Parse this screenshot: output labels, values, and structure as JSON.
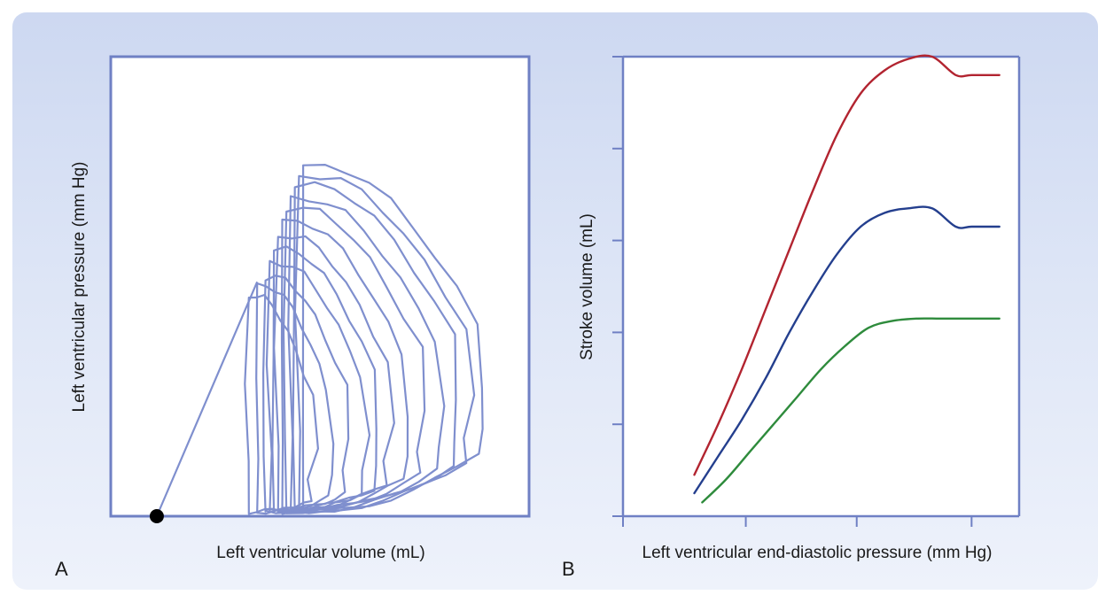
{
  "chart_data": [
    {
      "type": "line",
      "panel_label": "A",
      "xlabel": "Left ventricular volume (mL)",
      "ylabel": "Left ventricular pressure (mm Hg)",
      "x_range": [
        0,
        100
      ],
      "y_range": [
        0,
        100
      ],
      "grid": false,
      "series": [
        {
          "description": "pressure-volume loops during caval occlusion",
          "color": "#7f8fce",
          "loops": [
            {
              "esv": 46,
              "edv": 88,
              "ped": 14,
              "pes": 76
            },
            {
              "esv": 45,
              "edv": 85,
              "ped": 12,
              "pes": 74
            },
            {
              "esv": 44,
              "edv": 82,
              "ped": 11,
              "pes": 72
            },
            {
              "esv": 43,
              "edv": 78,
              "ped": 10,
              "pes": 69
            },
            {
              "esv": 42,
              "edv": 74,
              "ped": 9,
              "pes": 67
            },
            {
              "esv": 41,
              "edv": 70,
              "ped": 8,
              "pes": 64
            },
            {
              "esv": 40,
              "edv": 66,
              "ped": 7,
              "pes": 61
            },
            {
              "esv": 39,
              "edv": 63,
              "ped": 6,
              "pes": 58
            },
            {
              "esv": 38,
              "edv": 60,
              "ped": 5,
              "pes": 55
            },
            {
              "esv": 37,
              "edv": 56,
              "ped": 5,
              "pes": 52
            },
            {
              "esv": 35,
              "edv": 52,
              "ped": 4,
              "pes": 50
            },
            {
              "esv": 33,
              "edv": 48,
              "ped": 3,
              "pes": 48
            }
          ],
          "espvr_line": {
            "x": [
              11,
              35
            ],
            "y": [
              0,
              51
            ]
          },
          "origin_point": {
            "x": 11,
            "y": 0
          }
        }
      ]
    },
    {
      "type": "line",
      "panel_label": "B",
      "xlabel": "Left ventricular end-diastolic pressure (mm Hg)",
      "ylabel": "Stroke volume (mL)",
      "x_range": [
        0,
        100
      ],
      "y_range": [
        0,
        100
      ],
      "x_ticks": [
        0,
        31,
        59,
        88
      ],
      "y_ticks": [
        0,
        20,
        40,
        60,
        80,
        100
      ],
      "grid": false,
      "series": [
        {
          "color": "#b22430",
          "x": [
            18,
            24,
            30,
            36,
            42,
            48,
            54,
            60,
            66,
            72,
            78,
            84,
            88,
            95
          ],
          "y": [
            9,
            20,
            32,
            45,
            58,
            71,
            83,
            92,
            97,
            99.5,
            100,
            96,
            96,
            96
          ]
        },
        {
          "color": "#243f8e",
          "x": [
            18,
            24,
            30,
            36,
            42,
            48,
            54,
            60,
            66,
            72,
            78,
            84,
            88,
            95
          ],
          "y": [
            5,
            13,
            21,
            30,
            40,
            49,
            57,
            63,
            66,
            67,
            67,
            63,
            63,
            63
          ]
        },
        {
          "color": "#2e8b3c",
          "x": [
            20,
            26,
            32,
            38,
            44,
            50,
            56,
            62,
            68,
            74,
            80,
            86,
            90,
            95
          ],
          "y": [
            3,
            8,
            14,
            20,
            26,
            32,
            37,
            41,
            42.5,
            43,
            43,
            43,
            43,
            43
          ]
        }
      ]
    }
  ]
}
